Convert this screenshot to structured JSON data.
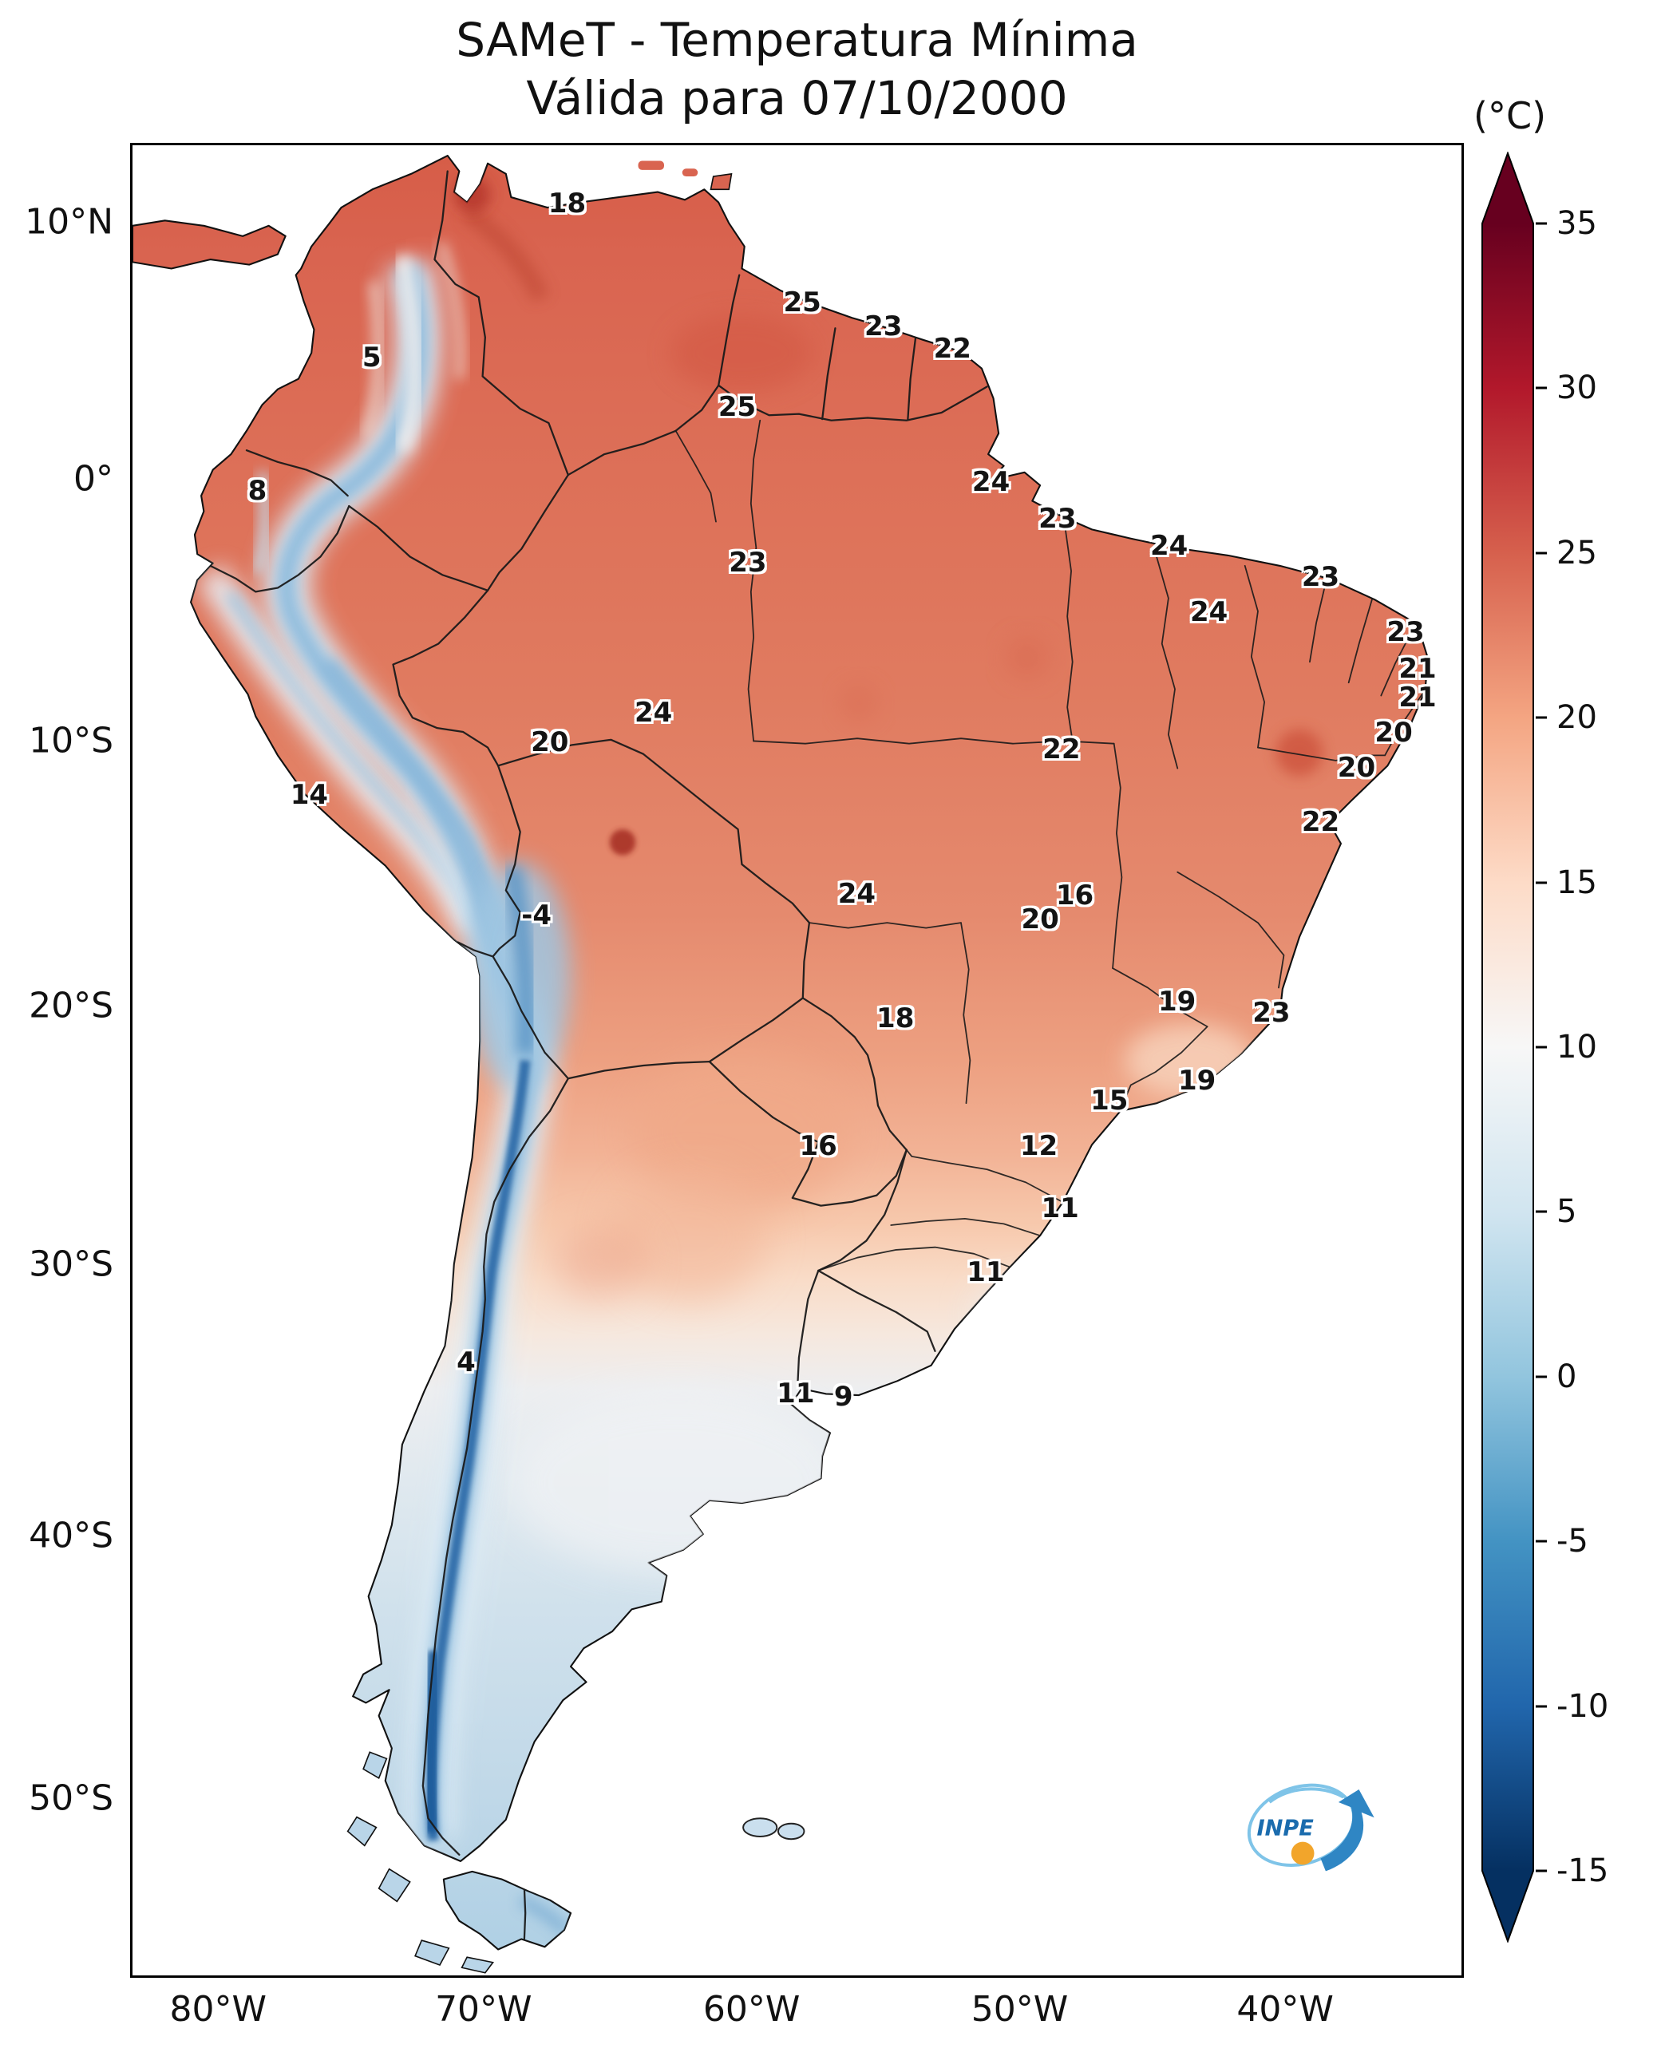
{
  "title": {
    "line1": "SAMeT - Temperatura Mínima",
    "line2": "Válida para 07/10/2000"
  },
  "colorbar": {
    "unit": "(°C)",
    "extend": "both",
    "ticks": [
      {
        "label": "35",
        "pct": 0
      },
      {
        "label": "30",
        "pct": 10
      },
      {
        "label": "25",
        "pct": 20
      },
      {
        "label": "20",
        "pct": 30
      },
      {
        "label": "15",
        "pct": 40
      },
      {
        "label": "10",
        "pct": 50
      },
      {
        "label": "5",
        "pct": 60
      },
      {
        "label": "0",
        "pct": 70
      },
      {
        "label": "-5",
        "pct": 80
      },
      {
        "label": "-10",
        "pct": 90
      },
      {
        "label": "-15",
        "pct": 100
      }
    ],
    "stops": [
      {
        "color": "#67001f",
        "pct": 0
      },
      {
        "color": "#b2182b",
        "pct": 10
      },
      {
        "color": "#d6604d",
        "pct": 20
      },
      {
        "color": "#f4a582",
        "pct": 30
      },
      {
        "color": "#fddbc7",
        "pct": 40
      },
      {
        "color": "#f7f7f7",
        "pct": 50
      },
      {
        "color": "#d1e5f0",
        "pct": 60
      },
      {
        "color": "#92c5de",
        "pct": 70
      },
      {
        "color": "#4393c3",
        "pct": 80
      },
      {
        "color": "#2166ac",
        "pct": 90
      },
      {
        "color": "#053061",
        "pct": 100
      }
    ]
  },
  "axes": {
    "lat_ticks": [
      {
        "label": "10°N",
        "pct": 4.3
      },
      {
        "label": "0°",
        "pct": 18.3
      },
      {
        "label": "10°S",
        "pct": 32.6
      },
      {
        "label": "20°S",
        "pct": 47.0
      },
      {
        "label": "30°S",
        "pct": 61.1
      },
      {
        "label": "40°S",
        "pct": 75.9
      },
      {
        "label": "50°S",
        "pct": 90.2
      }
    ],
    "lon_ticks": [
      {
        "label": "80°W",
        "pct": 6.6
      },
      {
        "label": "70°W",
        "pct": 26.5
      },
      {
        "label": "60°W",
        "pct": 46.6
      },
      {
        "label": "50°W",
        "pct": 66.7
      },
      {
        "label": "40°W",
        "pct": 86.6
      }
    ]
  },
  "logo": {
    "text": "INPE"
  },
  "chart_data": {
    "type": "heatmap",
    "title": "SAMeT - Temperatura Mínima",
    "subtitle": "Válida para 07/10/2000",
    "units": "°C",
    "colormap": "RdBu_r",
    "colorbar_range": [
      -15,
      35
    ],
    "colorbar_ticks": [
      35,
      30,
      25,
      20,
      15,
      10,
      5,
      0,
      -5,
      -10,
      -15
    ],
    "colorbar_extend": "both",
    "x_tick_labels": [
      "80°W",
      "70°W",
      "60°W",
      "50°W",
      "40°W"
    ],
    "y_tick_labels": [
      "10°N",
      "0°",
      "10°S",
      "20°S",
      "30°S",
      "40°S",
      "50°S"
    ],
    "legend_position": "right",
    "station_values": [
      {
        "value": "18",
        "x_pct": 32.7,
        "y_pct": 3.2
      },
      {
        "value": "25",
        "x_pct": 50.4,
        "y_pct": 8.6
      },
      {
        "value": "23",
        "x_pct": 56.5,
        "y_pct": 9.9
      },
      {
        "value": "22",
        "x_pct": 61.7,
        "y_pct": 11.1
      },
      {
        "value": "5",
        "x_pct": 18.0,
        "y_pct": 11.6
      },
      {
        "value": "25",
        "x_pct": 45.5,
        "y_pct": 14.3
      },
      {
        "value": "8",
        "x_pct": 9.4,
        "y_pct": 18.9
      },
      {
        "value": "24",
        "x_pct": 64.6,
        "y_pct": 18.4
      },
      {
        "value": "23",
        "x_pct": 69.6,
        "y_pct": 20.4
      },
      {
        "value": "24",
        "x_pct": 78.0,
        "y_pct": 21.9
      },
      {
        "value": "23",
        "x_pct": 89.4,
        "y_pct": 23.6
      },
      {
        "value": "23",
        "x_pct": 46.3,
        "y_pct": 22.8
      },
      {
        "value": "24",
        "x_pct": 81.0,
        "y_pct": 25.5
      },
      {
        "value": "23",
        "x_pct": 95.8,
        "y_pct": 26.6
      },
      {
        "value": "21",
        "x_pct": 96.7,
        "y_pct": 28.6
      },
      {
        "value": "21",
        "x_pct": 96.7,
        "y_pct": 30.2
      },
      {
        "value": "24",
        "x_pct": 39.2,
        "y_pct": 31.0
      },
      {
        "value": "20",
        "x_pct": 31.4,
        "y_pct": 32.6
      },
      {
        "value": "22",
        "x_pct": 69.9,
        "y_pct": 33.0
      },
      {
        "value": "20",
        "x_pct": 94.9,
        "y_pct": 32.1
      },
      {
        "value": "20",
        "x_pct": 92.1,
        "y_pct": 34.0
      },
      {
        "value": "14",
        "x_pct": 13.3,
        "y_pct": 35.5
      },
      {
        "value": "22",
        "x_pct": 89.4,
        "y_pct": 37.0
      },
      {
        "value": "-4",
        "x_pct": 30.4,
        "y_pct": 42.1
      },
      {
        "value": "24",
        "x_pct": 54.5,
        "y_pct": 40.9
      },
      {
        "value": "16",
        "x_pct": 70.9,
        "y_pct": 41.0
      },
      {
        "value": "20",
        "x_pct": 68.3,
        "y_pct": 42.3
      },
      {
        "value": "19",
        "x_pct": 78.6,
        "y_pct": 46.8
      },
      {
        "value": "18",
        "x_pct": 57.4,
        "y_pct": 47.7
      },
      {
        "value": "23",
        "x_pct": 85.7,
        "y_pct": 47.4
      },
      {
        "value": "19",
        "x_pct": 80.1,
        "y_pct": 51.1
      },
      {
        "value": "15",
        "x_pct": 73.5,
        "y_pct": 52.2
      },
      {
        "value": "16",
        "x_pct": 51.6,
        "y_pct": 54.7
      },
      {
        "value": "12",
        "x_pct": 68.2,
        "y_pct": 54.7
      },
      {
        "value": "11",
        "x_pct": 69.8,
        "y_pct": 58.1
      },
      {
        "value": "11",
        "x_pct": 64.2,
        "y_pct": 61.6
      },
      {
        "value": "4",
        "x_pct": 25.1,
        "y_pct": 66.5
      },
      {
        "value": "11",
        "x_pct": 49.9,
        "y_pct": 68.2
      },
      {
        "value": "9",
        "x_pct": 53.5,
        "y_pct": 68.4
      }
    ]
  }
}
